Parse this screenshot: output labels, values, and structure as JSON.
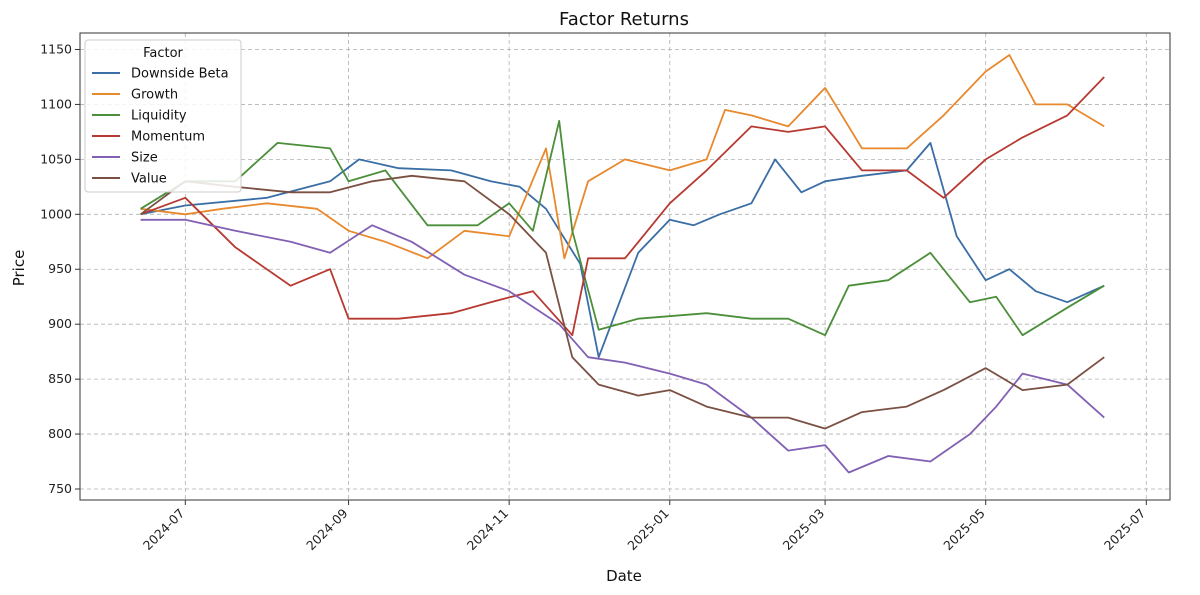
{
  "chart_data": {
    "type": "line",
    "title": "Factor Returns",
    "xlabel": "Date",
    "ylabel": "Price",
    "xlim": [
      "2024-05-22",
      "2025-07-10"
    ],
    "ylim": [
      740,
      1165
    ],
    "x_ticks": [
      "2024-07",
      "2024-09",
      "2024-11",
      "2025-01",
      "2025-03",
      "2025-05",
      "2025-07"
    ],
    "y_ticks": [
      750,
      800,
      850,
      900,
      950,
      1000,
      1050,
      1100,
      1150
    ],
    "grid": true,
    "legend": {
      "title": "Factor",
      "placement": "top-left"
    },
    "series": [
      {
        "name": "Downside Beta",
        "color": "#3a6ea5",
        "points": [
          [
            "2024-06-14",
            1000
          ],
          [
            "2024-07-01",
            1008
          ],
          [
            "2024-08-01",
            1015
          ],
          [
            "2024-08-25",
            1030
          ],
          [
            "2024-09-05",
            1050
          ],
          [
            "2024-09-20",
            1042
          ],
          [
            "2024-10-10",
            1040
          ],
          [
            "2024-10-25",
            1030
          ],
          [
            "2024-11-05",
            1025
          ],
          [
            "2024-11-15",
            1005
          ],
          [
            "2024-11-28",
            955
          ],
          [
            "2024-12-05",
            870
          ],
          [
            "2024-12-20",
            965
          ],
          [
            "2025-01-01",
            995
          ],
          [
            "2025-01-10",
            990
          ],
          [
            "2025-01-20",
            1000
          ],
          [
            "2025-02-01",
            1010
          ],
          [
            "2025-02-10",
            1050
          ],
          [
            "2025-02-20",
            1020
          ],
          [
            "2025-03-01",
            1030
          ],
          [
            "2025-03-15",
            1035
          ],
          [
            "2025-04-01",
            1040
          ],
          [
            "2025-04-10",
            1065
          ],
          [
            "2025-04-20",
            980
          ],
          [
            "2025-05-01",
            940
          ],
          [
            "2025-05-10",
            950
          ],
          [
            "2025-05-20",
            930
          ],
          [
            "2025-06-01",
            920
          ],
          [
            "2025-06-15",
            935
          ]
        ]
      },
      {
        "name": "Growth",
        "color": "#e8892e",
        "points": [
          [
            "2024-06-14",
            1005
          ],
          [
            "2024-07-01",
            1000
          ],
          [
            "2024-07-15",
            1005
          ],
          [
            "2024-08-01",
            1010
          ],
          [
            "2024-08-20",
            1005
          ],
          [
            "2024-09-01",
            985
          ],
          [
            "2024-09-15",
            975
          ],
          [
            "2024-10-01",
            960
          ],
          [
            "2024-10-15",
            985
          ],
          [
            "2024-11-01",
            980
          ],
          [
            "2024-11-15",
            1060
          ],
          [
            "2024-11-22",
            960
          ],
          [
            "2024-12-01",
            1030
          ],
          [
            "2024-12-15",
            1050
          ],
          [
            "2025-01-01",
            1040
          ],
          [
            "2025-01-15",
            1050
          ],
          [
            "2025-01-22",
            1095
          ],
          [
            "2025-02-01",
            1090
          ],
          [
            "2025-02-15",
            1080
          ],
          [
            "2025-03-01",
            1115
          ],
          [
            "2025-03-15",
            1060
          ],
          [
            "2025-04-01",
            1060
          ],
          [
            "2025-04-15",
            1090
          ],
          [
            "2025-05-01",
            1130
          ],
          [
            "2025-05-10",
            1145
          ],
          [
            "2025-05-20",
            1100
          ],
          [
            "2025-06-01",
            1100
          ],
          [
            "2025-06-15",
            1080
          ]
        ]
      },
      {
        "name": "Liquidity",
        "color": "#4b8f3a",
        "points": [
          [
            "2024-06-14",
            1005
          ],
          [
            "2024-07-01",
            1030
          ],
          [
            "2024-07-20",
            1030
          ],
          [
            "2024-08-05",
            1065
          ],
          [
            "2024-08-25",
            1060
          ],
          [
            "2024-09-01",
            1030
          ],
          [
            "2024-09-15",
            1040
          ],
          [
            "2024-10-01",
            990
          ],
          [
            "2024-10-20",
            990
          ],
          [
            "2024-11-01",
            1010
          ],
          [
            "2024-11-10",
            985
          ],
          [
            "2024-11-20",
            1085
          ],
          [
            "2024-11-25",
            985
          ],
          [
            "2024-12-05",
            895
          ],
          [
            "2024-12-20",
            905
          ],
          [
            "2025-01-15",
            910
          ],
          [
            "2025-02-01",
            905
          ],
          [
            "2025-02-15",
            905
          ],
          [
            "2025-03-01",
            890
          ],
          [
            "2025-03-10",
            935
          ],
          [
            "2025-03-25",
            940
          ],
          [
            "2025-04-10",
            965
          ],
          [
            "2025-04-25",
            920
          ],
          [
            "2025-05-05",
            925
          ],
          [
            "2025-05-15",
            890
          ],
          [
            "2025-06-01",
            915
          ],
          [
            "2025-06-15",
            935
          ]
        ]
      },
      {
        "name": "Momentum",
        "color": "#b73a32",
        "points": [
          [
            "2024-06-14",
            1000
          ],
          [
            "2024-07-01",
            1015
          ],
          [
            "2024-07-20",
            970
          ],
          [
            "2024-08-10",
            935
          ],
          [
            "2024-08-25",
            950
          ],
          [
            "2024-09-01",
            905
          ],
          [
            "2024-09-20",
            905
          ],
          [
            "2024-10-10",
            910
          ],
          [
            "2024-10-25",
            920
          ],
          [
            "2024-11-10",
            930
          ],
          [
            "2024-11-25",
            890
          ],
          [
            "2024-12-01",
            960
          ],
          [
            "2024-12-15",
            960
          ],
          [
            "2025-01-01",
            1010
          ],
          [
            "2025-01-15",
            1040
          ],
          [
            "2025-02-01",
            1080
          ],
          [
            "2025-02-15",
            1075
          ],
          [
            "2025-03-01",
            1080
          ],
          [
            "2025-03-15",
            1040
          ],
          [
            "2025-04-01",
            1040
          ],
          [
            "2025-04-15",
            1015
          ],
          [
            "2025-05-01",
            1050
          ],
          [
            "2025-05-15",
            1070
          ],
          [
            "2025-06-01",
            1090
          ],
          [
            "2025-06-15",
            1125
          ]
        ]
      },
      {
        "name": "Size",
        "color": "#8260b3",
        "points": [
          [
            "2024-06-14",
            995
          ],
          [
            "2024-07-01",
            995
          ],
          [
            "2024-07-20",
            985
          ],
          [
            "2024-08-10",
            975
          ],
          [
            "2024-08-25",
            965
          ],
          [
            "2024-09-10",
            990
          ],
          [
            "2024-09-25",
            975
          ],
          [
            "2024-10-15",
            945
          ],
          [
            "2024-11-01",
            930
          ],
          [
            "2024-11-20",
            900
          ],
          [
            "2024-12-01",
            870
          ],
          [
            "2024-12-15",
            865
          ],
          [
            "2025-01-01",
            855
          ],
          [
            "2025-01-15",
            845
          ],
          [
            "2025-02-01",
            815
          ],
          [
            "2025-02-15",
            785
          ],
          [
            "2025-03-01",
            790
          ],
          [
            "2025-03-10",
            765
          ],
          [
            "2025-03-25",
            780
          ],
          [
            "2025-04-10",
            775
          ],
          [
            "2025-04-25",
            800
          ],
          [
            "2025-05-05",
            825
          ],
          [
            "2025-05-15",
            855
          ],
          [
            "2025-06-01",
            845
          ],
          [
            "2025-06-15",
            815
          ]
        ]
      },
      {
        "name": "Value",
        "color": "#7a5043",
        "points": [
          [
            "2024-06-14",
            1000
          ],
          [
            "2024-07-01",
            1030
          ],
          [
            "2024-07-20",
            1025
          ],
          [
            "2024-08-10",
            1020
          ],
          [
            "2024-08-25",
            1020
          ],
          [
            "2024-09-10",
            1030
          ],
          [
            "2024-09-25",
            1035
          ],
          [
            "2024-10-15",
            1030
          ],
          [
            "2024-11-01",
            1000
          ],
          [
            "2024-11-15",
            965
          ],
          [
            "2024-11-25",
            870
          ],
          [
            "2024-12-05",
            845
          ],
          [
            "2024-12-20",
            835
          ],
          [
            "2025-01-01",
            840
          ],
          [
            "2025-01-15",
            825
          ],
          [
            "2025-02-01",
            815
          ],
          [
            "2025-02-15",
            815
          ],
          [
            "2025-03-01",
            805
          ],
          [
            "2025-03-15",
            820
          ],
          [
            "2025-04-01",
            825
          ],
          [
            "2025-04-15",
            840
          ],
          [
            "2025-05-01",
            860
          ],
          [
            "2025-05-15",
            840
          ],
          [
            "2025-06-01",
            845
          ],
          [
            "2025-06-15",
            870
          ]
        ]
      }
    ]
  }
}
